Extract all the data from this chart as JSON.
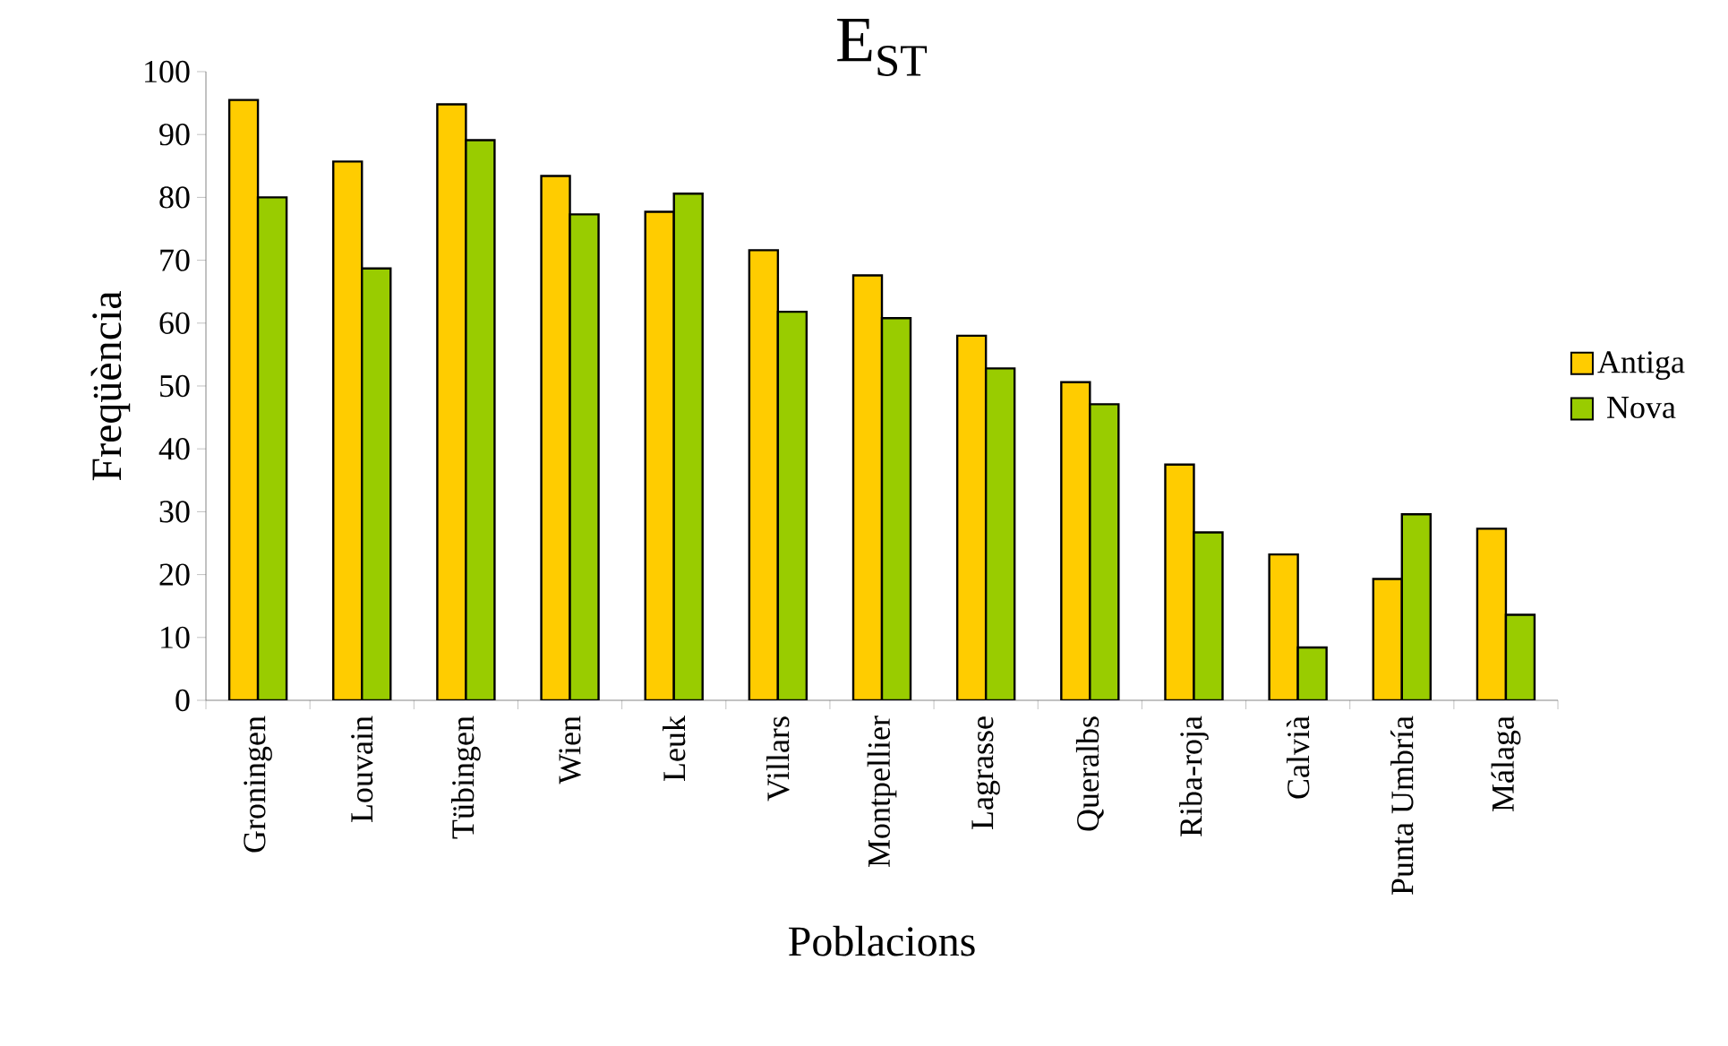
{
  "chart_data": {
    "type": "bar",
    "title": "E$_{ST}$",
    "xlabel": "Poblacions",
    "ylabel": "Freqüència",
    "categories": [
      "Groningen",
      "Louvain",
      "Tübingen",
      "Wien",
      "Leuk",
      "Villars",
      "Montpellier",
      "Lagrasse",
      "Queralbs",
      "Riba-roja",
      "Calvià",
      "Punta Umbría",
      "Málaga"
    ],
    "series": [
      {
        "name": "Antiga",
        "color": "#ffcc00",
        "values": [
          95.5,
          85.7,
          94.8,
          83.4,
          77.7,
          71.6,
          67.6,
          58.0,
          50.6,
          37.5,
          23.2,
          19.3,
          27.3
        ]
      },
      {
        "name": "Nova",
        "color": "#99cc00",
        "values": [
          80.0,
          68.7,
          89.1,
          77.3,
          80.6,
          61.8,
          60.8,
          52.8,
          47.1,
          26.7,
          8.4,
          29.6,
          13.6
        ]
      }
    ],
    "ylim": [
      0,
      100
    ],
    "yticks": [
      0,
      10,
      20,
      30,
      40,
      50,
      60,
      70,
      80,
      90,
      100
    ],
    "grid": false,
    "legend": "right"
  }
}
